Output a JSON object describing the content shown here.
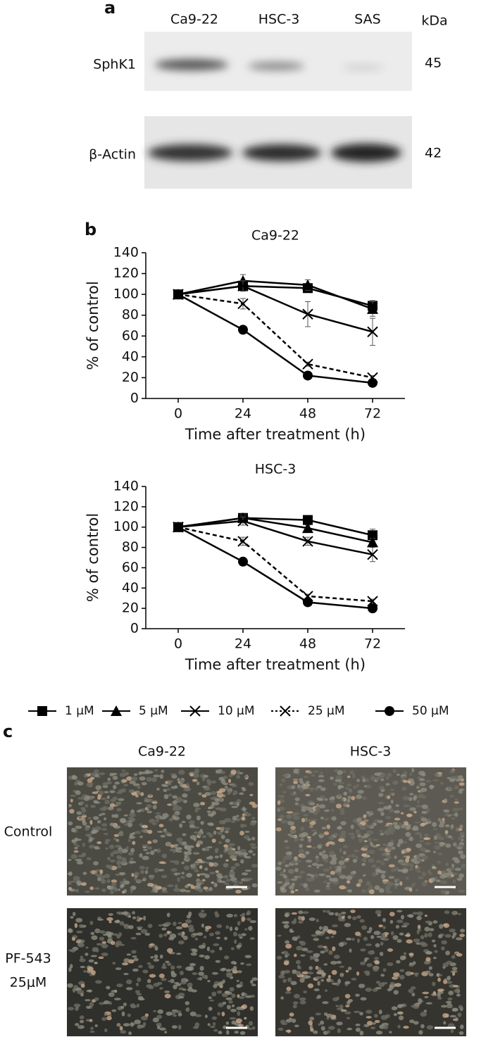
{
  "panel_a": {
    "label": "a",
    "lanes": [
      "Ca9-22",
      "HSC-3",
      "SAS"
    ],
    "unit": "kDa",
    "rows": [
      {
        "name": "SphK1",
        "size": 45
      },
      {
        "name": "β-Actin",
        "size": 42
      }
    ]
  },
  "panel_b": {
    "label": "b"
  },
  "chart_data": [
    {
      "type": "line",
      "title": "Ca9-22",
      "x_label": "Time after treatment (h)",
      "y_label": "% of control",
      "x": [
        0,
        24,
        48,
        72
      ],
      "xlim": [
        -12,
        84
      ],
      "xticks": [
        0,
        24,
        48,
        72
      ],
      "ylim": [
        0,
        140
      ],
      "yticks": [
        0,
        20,
        40,
        60,
        80,
        100,
        120,
        140
      ],
      "series": [
        {
          "name": "1 μM",
          "color": "#000000",
          "marker": "square",
          "dashed": false,
          "values": [
            100,
            108,
            106,
            89
          ],
          "errors": [
            0,
            4,
            3,
            5
          ]
        },
        {
          "name": "5 μM",
          "color": "#000000",
          "marker": "triangle",
          "dashed": false,
          "values": [
            100,
            113,
            109,
            86
          ],
          "errors": [
            0,
            6,
            5,
            7
          ]
        },
        {
          "name": "10 μM",
          "color": "#000000",
          "marker": "x",
          "dashed": false,
          "values": [
            100,
            108,
            81,
            64
          ],
          "errors": [
            0,
            5,
            12,
            13
          ]
        },
        {
          "name": "25 μM",
          "color": "#000000",
          "marker": "x",
          "dashed": true,
          "values": [
            100,
            91,
            33,
            20
          ],
          "errors": [
            0,
            5,
            2,
            2
          ]
        },
        {
          "name": "50 μM",
          "color": "#000000",
          "marker": "circle",
          "dashed": false,
          "values": [
            100,
            66,
            22,
            15
          ],
          "errors": [
            0,
            2,
            2,
            2
          ]
        }
      ]
    },
    {
      "type": "line",
      "title": "HSC-3",
      "x_label": "Time after treatment (h)",
      "y_label": "% of control",
      "x": [
        0,
        24,
        48,
        72
      ],
      "xlim": [
        -12,
        84
      ],
      "xticks": [
        0,
        24,
        48,
        72
      ],
      "ylim": [
        0,
        140
      ],
      "yticks": [
        0,
        20,
        40,
        60,
        80,
        100,
        120,
        140
      ],
      "series": [
        {
          "name": "1 μM",
          "color": "#000000",
          "marker": "square",
          "dashed": false,
          "values": [
            100,
            109,
            107,
            92
          ],
          "errors": [
            0,
            3,
            3,
            6
          ]
        },
        {
          "name": "5 μM",
          "color": "#000000",
          "marker": "triangle",
          "dashed": false,
          "values": [
            100,
            109,
            99,
            85
          ],
          "errors": [
            0,
            3,
            3,
            4
          ]
        },
        {
          "name": "10 μM",
          "color": "#000000",
          "marker": "x",
          "dashed": false,
          "values": [
            100,
            106,
            86,
            73
          ],
          "errors": [
            0,
            4,
            4,
            7
          ]
        },
        {
          "name": "25 μM",
          "color": "#000000",
          "marker": "x",
          "dashed": true,
          "values": [
            100,
            86,
            32,
            27
          ],
          "errors": [
            0,
            4,
            2,
            2
          ]
        },
        {
          "name": "50 μM",
          "color": "#000000",
          "marker": "circle",
          "dashed": false,
          "values": [
            100,
            66,
            26,
            20
          ],
          "errors": [
            0,
            2,
            2,
            2
          ]
        }
      ]
    }
  ],
  "panel_c": {
    "label": "c",
    "columns": [
      "Ca9-22",
      "HSC-3"
    ],
    "rows": [
      [
        "Control"
      ],
      [
        "PF-543",
        "25μM"
      ]
    ]
  }
}
